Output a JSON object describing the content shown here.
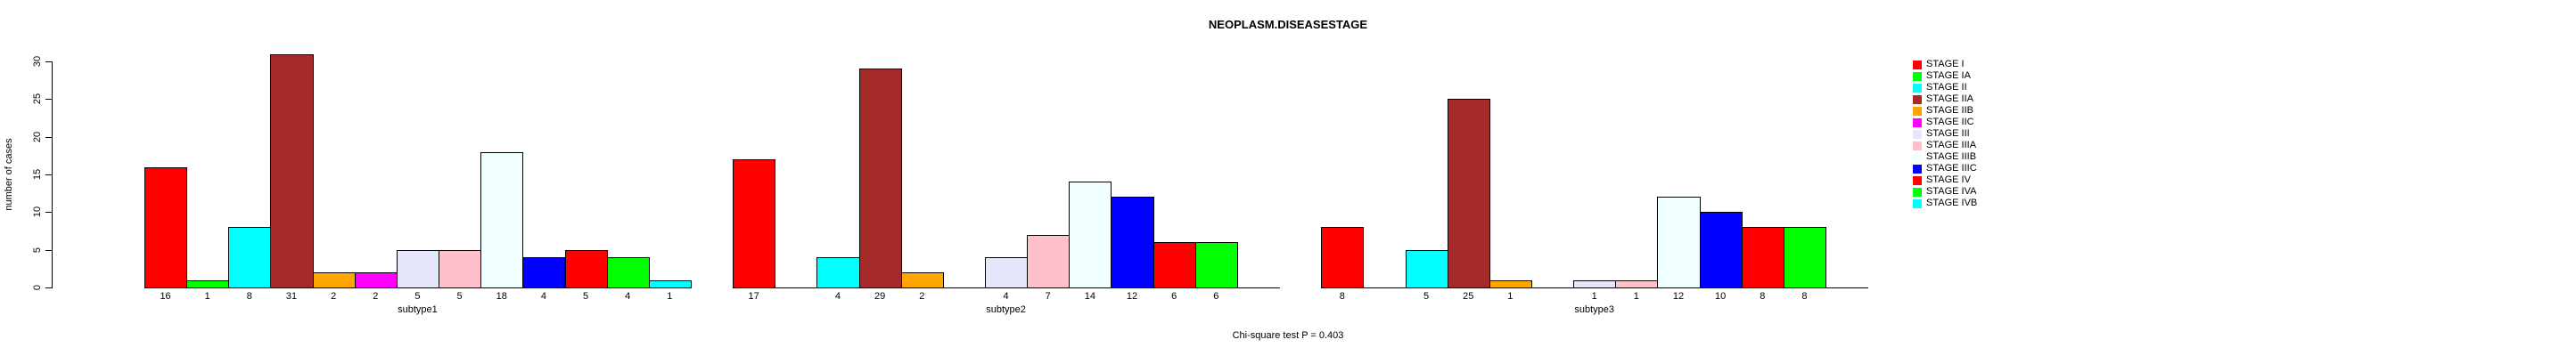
{
  "title": "NEOPLASM.DISEASESTAGE",
  "footer": "Chi-square test P = 0.403",
  "y_axis": {
    "label": "number of cases",
    "ticks": [
      0,
      5,
      10,
      15,
      20,
      25,
      30
    ]
  },
  "chart_data": {
    "type": "bar",
    "title": "NEOPLASM.DISEASESTAGE",
    "xlabel": "",
    "ylabel": "number of cases",
    "ylim": [
      0,
      30
    ],
    "yticks": [
      0,
      5,
      10,
      15,
      20,
      25,
      30
    ],
    "grid": false,
    "legend_position": "right",
    "annotation": "Chi-square test P = 0.403",
    "categories": [
      "STAGE I",
      "STAGE IA",
      "STAGE II",
      "STAGE IIA",
      "STAGE IIB",
      "STAGE IIC",
      "STAGE III",
      "STAGE IIIA",
      "STAGE IIIB",
      "STAGE IIIC",
      "STAGE IV",
      "STAGE IVA",
      "STAGE IVB"
    ],
    "colors": [
      "#FF0000",
      "#00FF00",
      "#00FFFF",
      "#A52A2A",
      "#FFA500",
      "#FF00FF",
      "#E6E6FA",
      "#FFC0CB",
      "#F0FFFF",
      "#0000FF",
      "#FF0000",
      "#00FF00",
      "#00FFFF"
    ],
    "groups": [
      {
        "label": "subtype1",
        "values": [
          16,
          1,
          8,
          31,
          2,
          2,
          5,
          5,
          18,
          4,
          5,
          4,
          1
        ]
      },
      {
        "label": "subtype2",
        "values": [
          17,
          null,
          4,
          29,
          2,
          null,
          4,
          7,
          14,
          12,
          6,
          6,
          null
        ]
      },
      {
        "label": "subtype3",
        "values": [
          8,
          null,
          5,
          25,
          1,
          null,
          1,
          1,
          12,
          10,
          8,
          8,
          null
        ]
      }
    ]
  }
}
